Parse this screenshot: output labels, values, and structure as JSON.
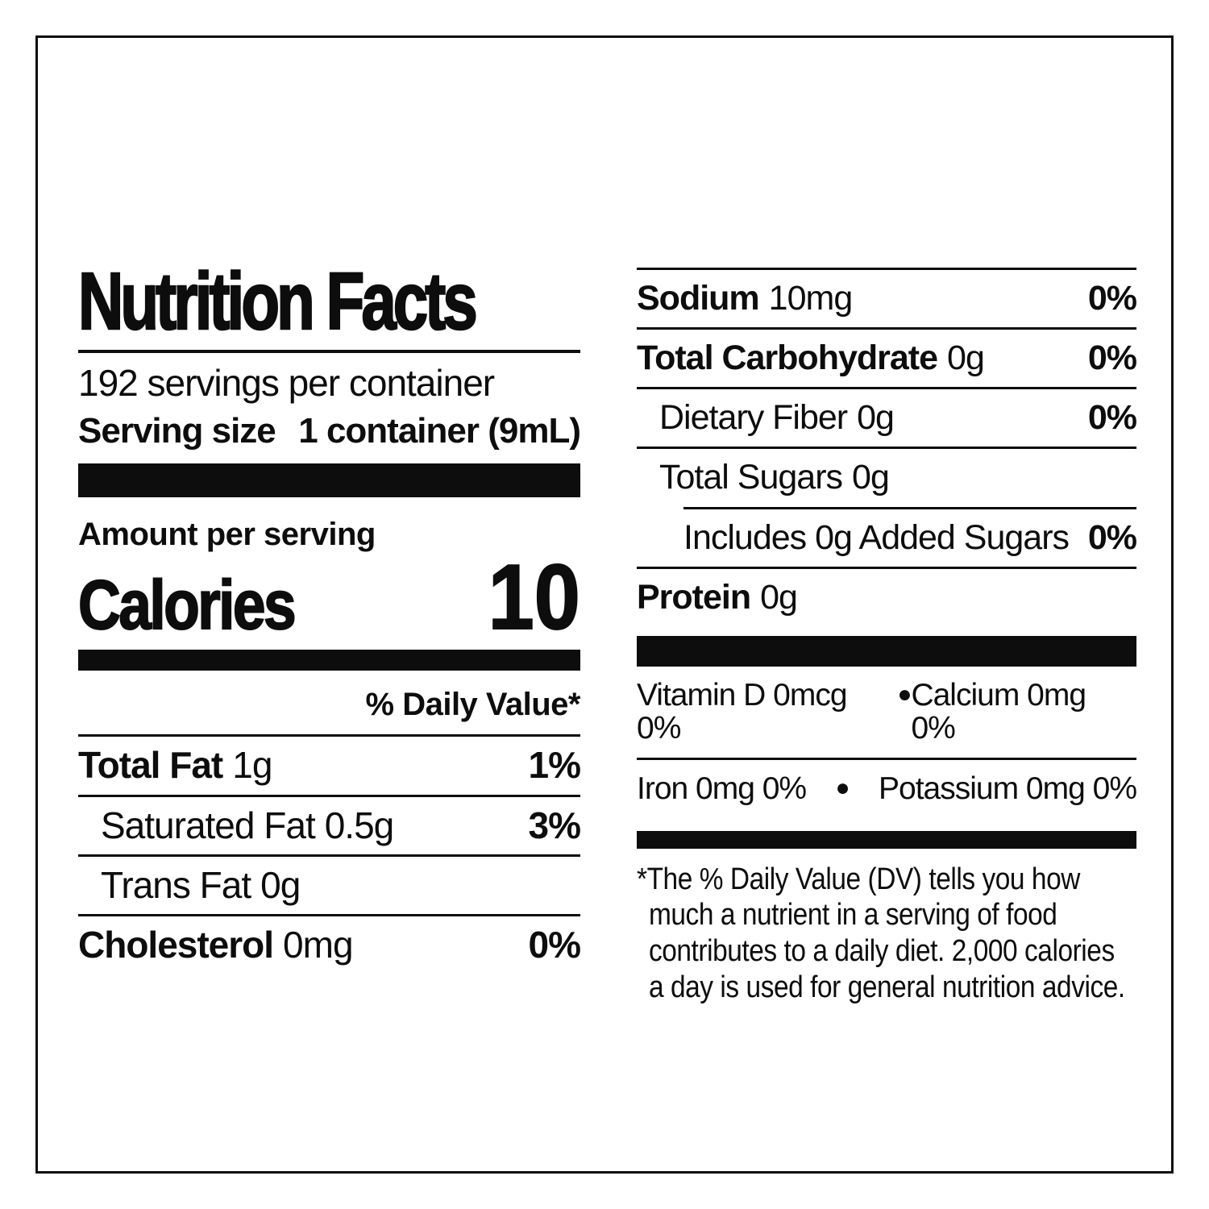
{
  "colors": {
    "ink": "#0d0d0d",
    "paper": "#ffffff"
  },
  "label": {
    "title": "Nutrition Facts",
    "servings_per_container": "192 servings per container",
    "serving_size_label": "Serving size",
    "serving_size_value": "1 container (9mL)",
    "amount_per_serving": "Amount per serving",
    "calories_label": "Calories",
    "calories_value": "10",
    "daily_value_header": "% Daily Value*",
    "left_rows": [
      {
        "name": "Total Fat",
        "amount": "1g",
        "dv": "1%"
      },
      {
        "name": "Saturated Fat",
        "amount": "0.5g",
        "dv": "3%"
      },
      {
        "name": "Trans Fat",
        "amount": "0g",
        "dv": ""
      },
      {
        "name": "Cholesterol",
        "amount": "0mg",
        "dv": "0%"
      }
    ],
    "right_rows": [
      {
        "name": "Sodium",
        "amount": "10mg",
        "dv": "0%"
      },
      {
        "name": "Total Carbohydrate",
        "amount": "0g",
        "dv": "0%"
      },
      {
        "name": "Dietary Fiber",
        "amount": "0g",
        "dv": "0%"
      },
      {
        "name": "Total Sugars",
        "amount": "0g",
        "dv": ""
      },
      {
        "name": "Includes 0g Added Sugars",
        "amount": "",
        "dv": "0%"
      },
      {
        "name": "Protein",
        "amount": "0g",
        "dv": ""
      }
    ],
    "micros": {
      "bullet": "●",
      "rows": [
        {
          "left": "Vitamin D 0mcg 0%",
          "right": "Calcium 0mg 0%"
        },
        {
          "left": "Iron 0mg 0%",
          "right": "Potassium 0mg 0%"
        }
      ]
    },
    "footnote": "*The % Daily Value (DV) tells you how much a nutrient in a serving of food contributes to a daily diet. 2,000 calories a day is used for general nutrition advice."
  }
}
